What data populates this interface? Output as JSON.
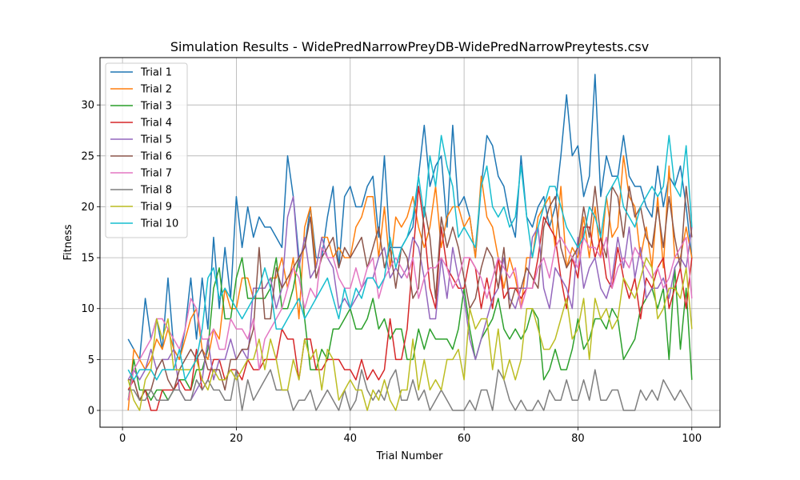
{
  "chart_data": {
    "type": "line",
    "title": "Simulation Results - WidePredNarrowPreyDB-WidePredNarrowPreytests.csv",
    "xlabel": "Trial Number",
    "ylabel": "Fitness",
    "xlim": [
      -3.95,
      104.95
    ],
    "ylim": [
      -1.65,
      34.65
    ],
    "xticks": [
      0,
      20,
      40,
      60,
      80,
      100
    ],
    "yticks": [
      0,
      5,
      10,
      15,
      20,
      25,
      30
    ],
    "grid": true,
    "legend_position": "upper left",
    "x_start": 1,
    "series": [
      {
        "name": "Trial 1",
        "color": "#1f77b4",
        "values": [
          7,
          6,
          5,
          11,
          7,
          9,
          6,
          13,
          6,
          5,
          8,
          13,
          7,
          13,
          8,
          17,
          10,
          16,
          11,
          21,
          16,
          20,
          17,
          19,
          18,
          18,
          17,
          16,
          25,
          21,
          15,
          16,
          20,
          15,
          15,
          19,
          22,
          14,
          21,
          22,
          20,
          20,
          22,
          23,
          17,
          25,
          16,
          16,
          16,
          17,
          18,
          23,
          28,
          22,
          24,
          25,
          18,
          28,
          20,
          21,
          19,
          15,
          22,
          27,
          26,
          23,
          22,
          19,
          17,
          25,
          19,
          18,
          20,
          21,
          18,
          20,
          25,
          31,
          25,
          26,
          21,
          23,
          33,
          21,
          25,
          23,
          23,
          27,
          23,
          22,
          22,
          20,
          19,
          24,
          20,
          23,
          22,
          24,
          20,
          15
        ]
      },
      {
        "name": "Trial 2",
        "color": "#ff7f0e",
        "values": [
          0,
          6,
          5,
          4,
          5,
          7,
          6,
          8,
          6,
          5,
          7,
          9,
          10,
          6,
          5,
          8,
          7,
          12,
          10,
          10,
          13,
          13,
          11,
          12,
          12,
          13,
          13,
          15,
          12,
          15,
          9,
          18,
          20,
          14,
          17,
          17,
          15,
          16,
          15,
          15,
          18,
          19,
          21,
          21,
          15,
          20,
          14,
          19,
          18,
          19,
          21,
          18,
          16,
          18,
          22,
          16,
          19,
          20,
          20,
          18,
          19,
          15,
          23,
          19,
          18,
          15,
          12,
          15,
          13,
          10,
          15,
          15,
          19,
          20,
          21,
          16,
          22,
          14,
          16,
          15,
          19,
          15,
          20,
          15,
          21,
          17,
          18,
          25,
          21,
          20,
          15,
          18,
          14,
          21,
          14,
          24,
          15,
          15,
          18,
          15
        ]
      },
      {
        "name": "Trial 3",
        "color": "#2ca02c",
        "values": [
          1,
          5,
          2,
          2,
          1,
          2,
          2,
          1,
          2,
          3,
          3,
          2,
          4,
          4,
          6,
          12,
          14,
          9,
          9,
          13,
          15,
          11,
          11,
          11,
          11,
          12,
          15,
          10,
          10,
          12,
          15,
          9,
          4,
          4,
          6,
          5,
          8,
          8,
          9,
          10,
          8,
          8,
          9,
          11,
          8,
          9,
          7,
          8,
          8,
          5,
          5,
          8,
          6,
          8,
          7,
          7,
          7,
          6,
          8,
          12,
          8,
          5,
          7,
          8,
          9,
          11,
          8,
          7,
          8,
          7,
          8,
          10,
          9,
          3,
          4,
          6,
          4,
          4,
          6,
          9,
          6,
          7,
          9,
          9,
          8,
          10,
          9,
          5,
          6,
          7,
          10,
          11,
          12,
          10,
          12,
          5,
          14,
          6,
          12,
          3
        ]
      },
      {
        "name": "Trial 4",
        "color": "#d62728",
        "values": [
          2,
          3,
          1,
          2,
          0,
          0,
          2,
          2,
          2,
          3,
          2,
          2,
          6,
          2,
          3,
          5,
          5,
          3,
          4,
          4,
          3,
          5,
          4,
          4,
          5,
          5,
          5,
          8,
          7,
          7,
          3,
          7,
          7,
          4,
          4,
          5,
          5,
          5,
          4,
          4,
          3,
          5,
          3,
          4,
          3,
          4,
          9,
          5,
          5,
          8,
          15,
          22,
          18,
          12,
          10,
          18,
          14,
          13,
          12,
          12,
          15,
          14,
          10,
          13,
          10,
          15,
          11,
          12,
          12,
          11,
          12,
          12,
          15,
          19,
          18,
          17,
          13,
          10,
          15,
          13,
          18,
          18,
          15,
          17,
          13,
          12,
          16,
          13,
          11,
          13,
          9,
          13,
          12,
          14,
          15,
          10,
          12,
          14,
          10,
          15
        ]
      },
      {
        "name": "Trial 5",
        "color": "#9467bd",
        "values": [
          3,
          4,
          3,
          4,
          6,
          4,
          5,
          5,
          6,
          2,
          1,
          1,
          2,
          3,
          7,
          3,
          5,
          5,
          7,
          5,
          6,
          5,
          12,
          12,
          12,
          13,
          10,
          12,
          19,
          21,
          14,
          17,
          13,
          14,
          17,
          15,
          14,
          10,
          11,
          10,
          11,
          12,
          13,
          13,
          15,
          16,
          13,
          14,
          13,
          14,
          17,
          16,
          13,
          9,
          9,
          15,
          11,
          16,
          13,
          11,
          7,
          5,
          7,
          9,
          11,
          12,
          15,
          11,
          10,
          12,
          12,
          17,
          18,
          12,
          10,
          14,
          13,
          12,
          10,
          17,
          12,
          14,
          15,
          12,
          11,
          13,
          17,
          14,
          18,
          13,
          16,
          11,
          12,
          12,
          13,
          11,
          14,
          15,
          14,
          18
        ]
      },
      {
        "name": "Trial 6",
        "color": "#8c564b",
        "values": [
          3,
          3,
          1,
          2,
          2,
          4,
          5,
          3,
          2,
          4,
          5,
          6,
          5,
          6,
          4,
          4,
          4,
          2,
          5,
          5,
          6,
          6,
          8,
          16,
          9,
          9,
          14,
          12,
          13,
          14,
          15,
          16,
          19,
          13,
          15,
          16,
          17,
          14,
          16,
          15,
          16,
          17,
          14,
          16,
          18,
          14,
          16,
          12,
          16,
          15,
          11,
          12,
          20,
          17,
          11,
          19,
          16,
          18,
          16,
          13,
          10,
          11,
          14,
          16,
          15,
          12,
          16,
          10,
          12,
          12,
          14,
          13,
          12,
          18,
          20,
          21,
          16,
          14,
          15,
          16,
          20,
          17,
          22,
          17,
          15,
          22,
          21,
          17,
          22,
          19,
          20,
          17,
          16,
          20,
          16,
          21,
          17,
          14,
          22,
          17
        ]
      },
      {
        "name": "Trial 7",
        "color": "#e377c2",
        "values": [
          1,
          4,
          5,
          6,
          7,
          9,
          9,
          8,
          7,
          6,
          8,
          11,
          10,
          7,
          7,
          8,
          6,
          6,
          9,
          8,
          8,
          7,
          9,
          4,
          7,
          8,
          9,
          10,
          12,
          14,
          13,
          10,
          12,
          11,
          16,
          15,
          15,
          13,
          12,
          12,
          14,
          12,
          14,
          15,
          11,
          13,
          14,
          15,
          14,
          13,
          15,
          11,
          13,
          14,
          14,
          15,
          14,
          12,
          13,
          15,
          15,
          14,
          13,
          11,
          13,
          15,
          14,
          13,
          14,
          10,
          12,
          12,
          14,
          15,
          13,
          16,
          17,
          16,
          15,
          14,
          17,
          16,
          16,
          15,
          17,
          12,
          14,
          15,
          14,
          16,
          15,
          14,
          13,
          14,
          12,
          13,
          15,
          16,
          17,
          11
        ]
      },
      {
        "name": "Trial 8",
        "color": "#7f7f7f",
        "values": [
          2,
          2,
          1,
          1,
          2,
          1,
          1,
          1,
          2,
          2,
          1,
          1,
          3,
          2,
          3,
          2,
          2,
          1,
          1,
          4,
          0,
          3,
          1,
          2,
          3,
          4,
          2,
          2,
          2,
          0,
          1,
          1,
          2,
          0,
          1,
          2,
          1,
          0,
          2,
          0,
          1,
          4,
          2,
          1,
          2,
          1,
          3,
          4,
          1,
          1,
          3,
          1,
          2,
          0,
          1,
          2,
          1,
          0,
          0,
          0,
          1,
          0,
          2,
          2,
          0,
          4,
          3,
          1,
          0,
          1,
          0,
          0,
          1,
          0,
          2,
          1,
          1,
          3,
          1,
          1,
          3,
          1,
          4,
          1,
          1,
          2,
          2,
          0,
          0,
          0,
          2,
          1,
          2,
          1,
          3,
          2,
          1,
          2,
          1,
          0
        ]
      },
      {
        "name": "Trial 9",
        "color": "#bcbd22",
        "values": [
          3,
          1,
          0,
          3,
          4,
          9,
          7,
          9,
          4,
          4,
          4,
          4,
          5,
          3,
          2,
          4,
          3,
          3,
          4,
          3,
          4,
          5,
          5,
          7,
          4,
          7,
          5,
          2,
          2,
          5,
          3,
          7,
          5,
          6,
          2,
          6,
          5,
          1,
          2,
          3,
          2,
          2,
          0,
          2,
          1,
          3,
          1,
          0,
          2,
          2,
          7,
          2,
          5,
          2,
          3,
          2,
          5,
          5,
          6,
          3,
          10,
          8,
          9,
          9,
          4,
          8,
          3,
          5,
          3,
          5,
          10,
          10,
          8,
          6,
          6,
          7,
          9,
          11,
          7,
          8,
          11,
          5,
          11,
          9,
          10,
          8,
          9,
          13,
          12,
          11,
          13,
          15,
          14,
          9,
          10,
          12,
          12,
          11,
          14,
          8
        ]
      },
      {
        "name": "Trial 10",
        "color": "#17becf",
        "values": [
          4,
          3,
          4,
          4,
          4,
          3,
          4,
          4,
          4,
          6,
          3,
          4,
          5,
          8,
          13,
          14,
          11,
          12,
          11,
          10,
          9,
          10,
          11,
          12,
          14,
          12,
          8,
          8,
          9,
          10,
          11,
          9,
          10,
          11,
          12,
          13,
          11,
          9,
          12,
          10,
          12,
          11,
          13,
          13,
          12,
          13,
          17,
          14,
          16,
          17,
          19,
          23,
          19,
          25,
          22,
          27,
          24,
          22,
          17,
          18,
          17,
          16,
          22,
          24,
          20,
          19,
          20,
          18,
          19,
          24,
          19,
          15,
          18,
          20,
          22,
          22,
          20,
          18,
          17,
          16,
          17,
          20,
          19,
          17,
          21,
          22,
          23,
          20,
          19,
          18,
          20,
          21,
          22,
          21,
          22,
          27,
          22,
          21,
          26,
          18
        ]
      }
    ]
  }
}
